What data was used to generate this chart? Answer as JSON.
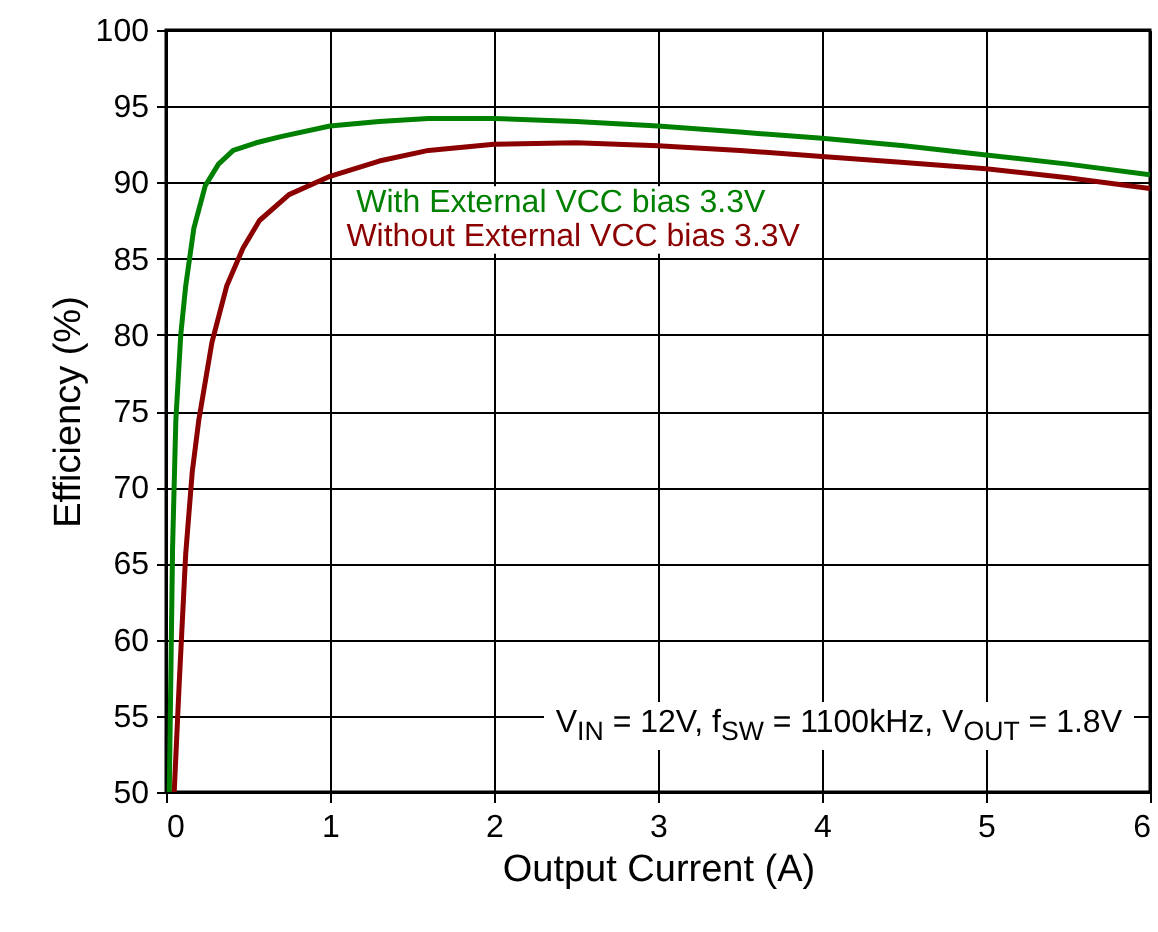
{
  "chart_data": {
    "type": "line",
    "xlabel": "Output Current (A)",
    "ylabel": "Efficiency (%)",
    "xlim": [
      0,
      6
    ],
    "xticks": [
      0,
      1,
      2,
      3,
      4,
      5,
      6
    ],
    "ylim": [
      50,
      100
    ],
    "yticks": [
      50,
      55,
      60,
      65,
      70,
      75,
      80,
      85,
      90,
      95,
      100
    ],
    "grid": true,
    "annotations": [
      "V$_{IN}$ = 12V, f$_{SW}$ = 1100kHz, V$_{OUT}$ = 1.8V"
    ],
    "series": [
      {
        "name": "With External VCC bias 3.3V",
        "color": "#008000",
        "x": [
          0.02,
          0.04,
          0.06,
          0.09,
          0.12,
          0.17,
          0.24,
          0.32,
          0.41,
          0.55,
          0.7,
          1.0,
          1.3,
          1.6,
          2.0,
          2.5,
          3.0,
          3.5,
          4.0,
          4.5,
          5.0,
          5.5,
          6.0
        ],
        "values": [
          50,
          66,
          74.4,
          80,
          83.2,
          87,
          89.8,
          91.2,
          92.1,
          92.6,
          93.0,
          93.7,
          94.0,
          94.2,
          94.2,
          94.0,
          93.7,
          93.3,
          92.9,
          92.4,
          91.8,
          91.2,
          90.5
        ]
      },
      {
        "name": "Without External VCC bias 3.3V",
        "color": "#8b0000",
        "x": [
          0.05,
          0.08,
          0.12,
          0.16,
          0.2,
          0.28,
          0.37,
          0.47,
          0.57,
          0.75,
          1.0,
          1.3,
          1.6,
          2.0,
          2.5,
          3.0,
          3.5,
          4.0,
          4.5,
          5.0,
          5.5,
          6.0
        ],
        "values": [
          50,
          57,
          65.6,
          71,
          74.4,
          79.5,
          83.2,
          85.7,
          87.5,
          89.2,
          90.4,
          91.4,
          92.1,
          92.5,
          92.6,
          92.4,
          92.1,
          91.7,
          91.3,
          90.9,
          90.3,
          89.6
        ]
      }
    ]
  }
}
